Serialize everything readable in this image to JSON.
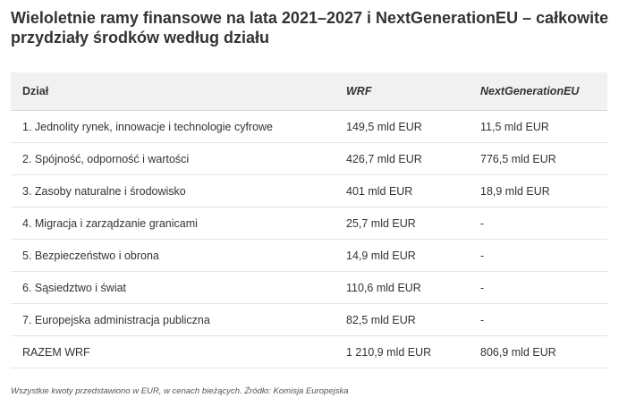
{
  "title": "Wieloletnie ramy finansowe na lata 2021–2027 i NextGenerationEU – całkowite przydziały środków według działu",
  "table": {
    "headers": [
      "Dział",
      "WRF",
      "NextGenerationEU"
    ],
    "rows": [
      [
        "1. Jednolity rynek, innowacje i technologie cyfrowe",
        "149,5 mld EUR",
        "11,5 mld EUR"
      ],
      [
        "2. Spójność, odporność i wartości",
        "426,7 mld EUR",
        "776,5 mld EUR"
      ],
      [
        "3. Zasoby naturalne i środowisko",
        "401 mld EUR",
        "18,9 mld EUR"
      ],
      [
        "4. Migracja i zarządzanie granicami",
        "25,7 mld EUR",
        "-"
      ],
      [
        "5. Bezpieczeństwo i obrona",
        "14,9 mld EUR",
        "-"
      ],
      [
        "6. Sąsiedztwo i świat",
        "110,6 mld EUR",
        "-"
      ],
      [
        "7. Europejska administracja publiczna",
        "82,5 mld EUR",
        "-"
      ],
      [
        "RAZEM WRF",
        "1 210,9 mld EUR",
        "806,9 mld EUR"
      ]
    ]
  },
  "footnote": "Wszystkie kwoty przedstawiono w EUR, w cenach bieżących. Źródło: Komisja Europejska",
  "colors": {
    "header_background": "#f1f1f1",
    "text": "#333333",
    "row_border": "#e4e4e4"
  }
}
